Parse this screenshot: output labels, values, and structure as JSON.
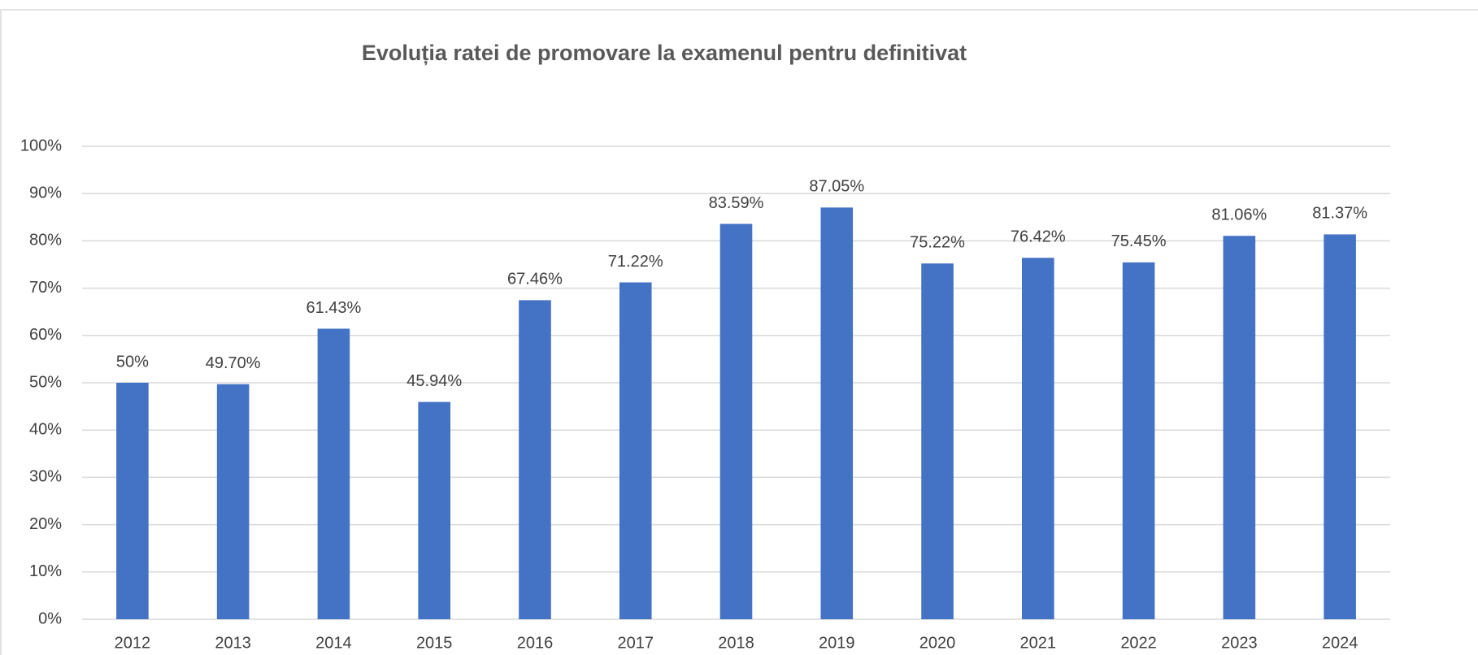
{
  "chart_data": {
    "type": "bar",
    "title": "Evoluția ratei de promovare la examenul pentru definitivat",
    "categories": [
      "2012",
      "2013",
      "2014",
      "2015",
      "2016",
      "2017",
      "2018",
      "2019",
      "2020",
      "2021",
      "2022",
      "2023",
      "2024"
    ],
    "values": [
      50,
      49.7,
      61.43,
      45.94,
      67.46,
      71.22,
      83.59,
      87.05,
      75.22,
      76.42,
      75.45,
      81.06,
      81.37
    ],
    "value_labels": [
      "50%",
      "49.70%",
      "61.43%",
      "45.94%",
      "67.46%",
      "71.22%",
      "83.59%",
      "87.05%",
      "75.22%",
      "76.42%",
      "75.45%",
      "81.06%",
      "81.37%"
    ],
    "color": "#4472c4",
    "ylim": [
      0,
      100
    ],
    "yticks": [
      {
        "value": 0,
        "label": "0%"
      },
      {
        "value": 10,
        "label": "10%"
      },
      {
        "value": 20,
        "label": "20%"
      },
      {
        "value": 30,
        "label": "30%"
      },
      {
        "value": 40,
        "label": "40%"
      },
      {
        "value": 50,
        "label": "50%"
      },
      {
        "value": 60,
        "label": "60%"
      },
      {
        "value": 70,
        "label": "70%"
      },
      {
        "value": 80,
        "label": "80%"
      },
      {
        "value": 90,
        "label": "90%"
      },
      {
        "value": 100,
        "label": "100%"
      }
    ],
    "grid": true
  }
}
